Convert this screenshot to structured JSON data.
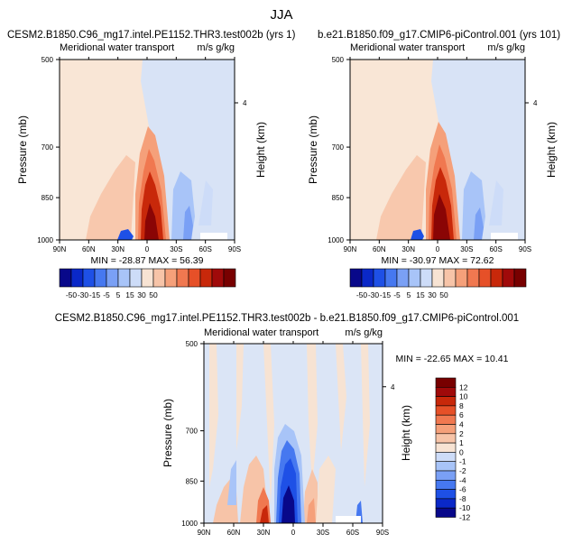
{
  "page_title": "JJA",
  "chart_data": [
    {
      "type": "heatmap",
      "title": "CESM2.B1850.C96_mg17.intel.PE1152.THR3.test002b (yrs 1)",
      "subtitle_left": "Meridional water transport",
      "subtitle_right": "m/s g/kg",
      "xlabel": "",
      "ylabel": "Pressure (mb)",
      "ylabel_right": "Height (km)",
      "x_ticks": [
        "90N",
        "60N",
        "30N",
        "0",
        "30S",
        "60S",
        "90S"
      ],
      "y_ticks": [
        "500",
        "700",
        "850",
        "1000"
      ],
      "right_ticks": [
        "4"
      ],
      "xlim": [
        90,
        -90
      ],
      "ylim": [
        1000,
        500
      ],
      "stats": "MIN = -28.87   MAX = 56.39",
      "min": -28.87,
      "max": 56.39
    },
    {
      "type": "heatmap",
      "title": "b.e21.B1850.f09_g17.CMIP6-piControl.001 (yrs 101)",
      "subtitle_left": "Meridional water transport",
      "subtitle_right": "m/s g/kg",
      "xlabel": "",
      "ylabel": "Pressure (mb)",
      "ylabel_right": "Height (km)",
      "x_ticks": [
        "90N",
        "60N",
        "30N",
        "0",
        "30S",
        "60S",
        "90S"
      ],
      "y_ticks": [
        "500",
        "700",
        "850",
        "1000"
      ],
      "right_ticks": [
        "4"
      ],
      "xlim": [
        90,
        -90
      ],
      "ylim": [
        1000,
        500
      ],
      "stats": "MIN = -30.97   MAX = 72.62",
      "min": -30.97,
      "max": 72.62
    },
    {
      "type": "heatmap",
      "title": "CESM2.B1850.C96_mg17.intel.PE1152.THR3.test002b - b.e21.B1850.f09_g17.CMIP6-piControl.001",
      "subtitle_left": "Meridional water transport",
      "subtitle_right": "m/s g/kg",
      "xlabel": "",
      "ylabel": "Pressure (mb)",
      "ylabel_right": "Height (km)",
      "x_ticks": [
        "90N",
        "60N",
        "30N",
        "0",
        "30S",
        "60S",
        "90S"
      ],
      "y_ticks": [
        "500",
        "700",
        "850",
        "1000"
      ],
      "right_ticks": [
        "4"
      ],
      "xlim": [
        90,
        -90
      ],
      "ylim": [
        1000,
        500
      ],
      "stats": "MIN = -22.65   MAX = 10.41",
      "min": -22.65,
      "max": 10.41
    }
  ],
  "colorbars": {
    "top": {
      "orientation": "horizontal",
      "labels": [
        "-50",
        "-30",
        "-15",
        "-5",
        "5",
        "15",
        "30",
        "50"
      ],
      "colors": [
        "#08088a",
        "#0a28c8",
        "#1e50e6",
        "#4678f0",
        "#7aa0f5",
        "#a8c4f8",
        "#cddcf8",
        "#f7e3d3",
        "#f7c4a8",
        "#f5a07a",
        "#f07850",
        "#e65028",
        "#c8280a",
        "#a00a0a",
        "#780000"
      ]
    },
    "bottom": {
      "orientation": "vertical",
      "labels": [
        "12",
        "10",
        "8",
        "6",
        "4",
        "2",
        "1",
        "0",
        "-1",
        "-2",
        "-4",
        "-6",
        "-8",
        "-10",
        "-12"
      ],
      "colors": [
        "#780000",
        "#a00a0a",
        "#c8280a",
        "#e65028",
        "#f07850",
        "#f5a07a",
        "#f7c4a8",
        "#f7e3d3",
        "#cddcf8",
        "#a8c4f8",
        "#7aa0f5",
        "#4678f0",
        "#1e50e6",
        "#0a28c8",
        "#08088a"
      ]
    }
  }
}
